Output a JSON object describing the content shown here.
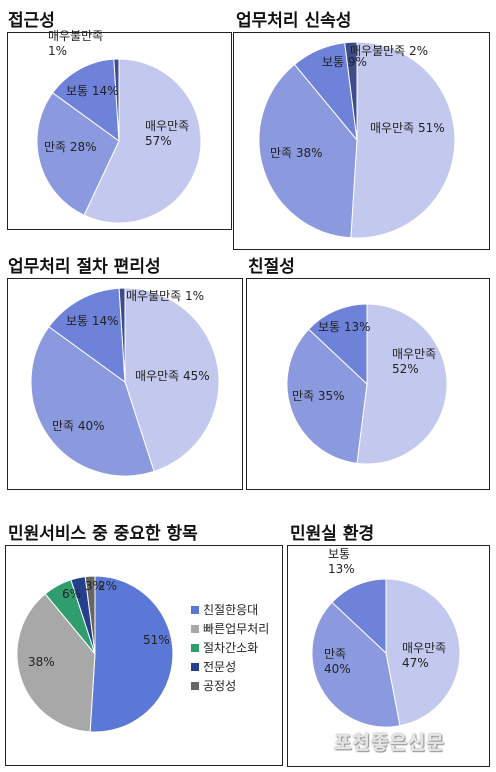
{
  "colors": {
    "very_satisfied": "#c3c9ee",
    "satisfied": "#8b99df",
    "normal": "#6e82da",
    "very_dissatisfied": "#3f4c8c",
    "kindness": "#5b78d6",
    "fast_processing": "#a8a8a8",
    "simplification": "#2f9d6e",
    "expertise": "#253f8c",
    "fairness": "#666666"
  },
  "chart_data": [
    {
      "type": "pie",
      "title": "접근성",
      "slices": [
        {
          "name": "매우만족",
          "value": 57,
          "label": "매우만족\n57%",
          "color_key": "very_satisfied"
        },
        {
          "name": "만족",
          "value": 28,
          "label": "만족 28%",
          "color_key": "satisfied"
        },
        {
          "name": "보통",
          "value": 14,
          "label": "보통 14%",
          "color_key": "normal"
        },
        {
          "name": "매우불만족",
          "value": 1,
          "label": "매우불만족\n1%",
          "color_key": "very_dissatisfied"
        }
      ]
    },
    {
      "type": "pie",
      "title": "업무처리 신속성",
      "slices": [
        {
          "name": "매우만족",
          "value": 51,
          "label": "매우만족 51%",
          "color_key": "very_satisfied"
        },
        {
          "name": "만족",
          "value": 38,
          "label": "만족 38%",
          "color_key": "satisfied"
        },
        {
          "name": "보통",
          "value": 9,
          "label": "보통 9%",
          "color_key": "normal"
        },
        {
          "name": "매우불만족",
          "value": 2,
          "label": "매우불만족 2%",
          "color_key": "very_dissatisfied"
        }
      ]
    },
    {
      "type": "pie",
      "title": "업무처리 절차 편리성",
      "slices": [
        {
          "name": "매우만족",
          "value": 45,
          "label": "매우만족 45%",
          "color_key": "very_satisfied"
        },
        {
          "name": "만족",
          "value": 40,
          "label": "만족 40%",
          "color_key": "satisfied"
        },
        {
          "name": "보통",
          "value": 14,
          "label": "보통 14%",
          "color_key": "normal"
        },
        {
          "name": "매우불만족",
          "value": 1,
          "label": "매우불만족 1%",
          "color_key": "very_dissatisfied"
        }
      ]
    },
    {
      "type": "pie",
      "title": "친절성",
      "slices": [
        {
          "name": "매우만족",
          "value": 52,
          "label": "매우만족\n52%",
          "color_key": "very_satisfied"
        },
        {
          "name": "만족",
          "value": 35,
          "label": "만족 35%",
          "color_key": "satisfied"
        },
        {
          "name": "보통",
          "value": 13,
          "label": "보통 13%",
          "color_key": "normal"
        }
      ]
    },
    {
      "type": "pie",
      "title": "민원서비스 중 중요한 항목",
      "legend": "right",
      "slices": [
        {
          "name": "친절한응대",
          "value": 51,
          "label": "51%",
          "color_key": "kindness"
        },
        {
          "name": "빠른업무처리",
          "value": 38,
          "label": "38%",
          "color_key": "fast_processing"
        },
        {
          "name": "절차간소화",
          "value": 6,
          "label": "6%",
          "color_key": "simplification"
        },
        {
          "name": "전문성",
          "value": 3,
          "label": "3%",
          "color_key": "expertise"
        },
        {
          "name": "공정성",
          "value": 2,
          "label": "2%",
          "color_key": "fairness"
        }
      ]
    },
    {
      "type": "pie",
      "title": "민원실 환경",
      "slices": [
        {
          "name": "매우만족",
          "value": 47,
          "label": "매우만족\n47%",
          "color_key": "very_satisfied"
        },
        {
          "name": "만족",
          "value": 40,
          "label": "만족\n40%",
          "color_key": "satisfied"
        },
        {
          "name": "보통",
          "value": 13,
          "label": "보통\n13%",
          "color_key": "normal"
        }
      ]
    }
  ],
  "watermark": "포천좋은신문"
}
